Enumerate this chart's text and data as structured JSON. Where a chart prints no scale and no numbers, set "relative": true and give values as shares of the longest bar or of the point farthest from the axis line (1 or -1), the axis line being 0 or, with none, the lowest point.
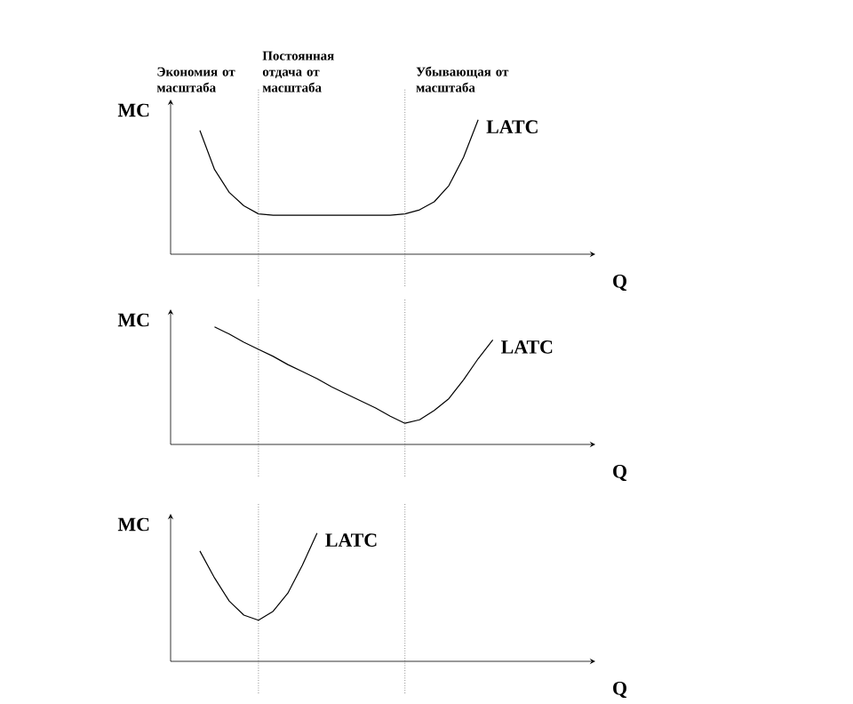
{
  "chart_data": [
    {
      "type": "line",
      "relative": true,
      "ylabel": "MC",
      "xlabel": "Q",
      "marker": "none",
      "categories": [
        null,
        null,
        null,
        null,
        null,
        null,
        null,
        null,
        null,
        null,
        null,
        null,
        null,
        null,
        null,
        null,
        null,
        null,
        null,
        null,
        null,
        null,
        null,
        null,
        null,
        null,
        null,
        null,
        null,
        null
      ],
      "series": [
        {
          "name": "LATC",
          "color": "#000000",
          "line_style": "solid",
          "values": [
            null,
            null,
            0.92,
            0.63,
            0.46,
            0.36,
            0.3,
            0.29,
            0.29,
            0.29,
            0.29,
            0.29,
            0.29,
            0.29,
            0.29,
            0.29,
            0.3,
            0.33,
            0.39,
            0.51,
            0.72,
            1.0,
            null,
            null,
            null,
            null,
            null,
            null,
            null,
            null
          ]
        }
      ],
      "annotations": [
        "Экономия от масштаба",
        "Постоянная отдача от масштаба",
        "Убывающая от масштаба"
      ]
    },
    {
      "type": "line",
      "relative": true,
      "ylabel": "MC",
      "xlabel": "Q",
      "marker": "none",
      "categories": [
        null,
        null,
        null,
        null,
        null,
        null,
        null,
        null,
        null,
        null,
        null,
        null,
        null,
        null,
        null,
        null,
        null,
        null,
        null,
        null,
        null,
        null,
        null,
        null,
        null,
        null,
        null,
        null,
        null,
        null
      ],
      "series": [
        {
          "name": "LATC",
          "color": "#000000",
          "line_style": "solid",
          "values": [
            null,
            null,
            null,
            1.0,
            0.94,
            0.87,
            0.81,
            0.75,
            0.68,
            0.62,
            0.56,
            0.49,
            0.43,
            0.37,
            0.31,
            0.24,
            0.18,
            0.21,
            0.29,
            0.39,
            0.55,
            0.73,
            0.89,
            null,
            null,
            null,
            null,
            null,
            null,
            null
          ]
        }
      ]
    },
    {
      "type": "line",
      "relative": true,
      "ylabel": "MC",
      "xlabel": "Q",
      "marker": "none",
      "categories": [
        null,
        null,
        null,
        null,
        null,
        null,
        null,
        null,
        null,
        null,
        null,
        null,
        null,
        null,
        null,
        null,
        null,
        null,
        null,
        null,
        null,
        null,
        null,
        null,
        null,
        null,
        null,
        null,
        null,
        null
      ],
      "series": [
        {
          "name": "LATC",
          "color": "#000000",
          "line_style": "solid",
          "values": [
            null,
            null,
            0.86,
            0.65,
            0.47,
            0.36,
            0.32,
            0.39,
            0.53,
            0.75,
            1.0,
            null,
            null,
            null,
            null,
            null,
            null,
            null,
            null,
            null,
            null,
            null,
            null,
            null,
            null,
            null,
            null,
            null,
            null,
            null
          ]
        }
      ]
    }
  ]
}
